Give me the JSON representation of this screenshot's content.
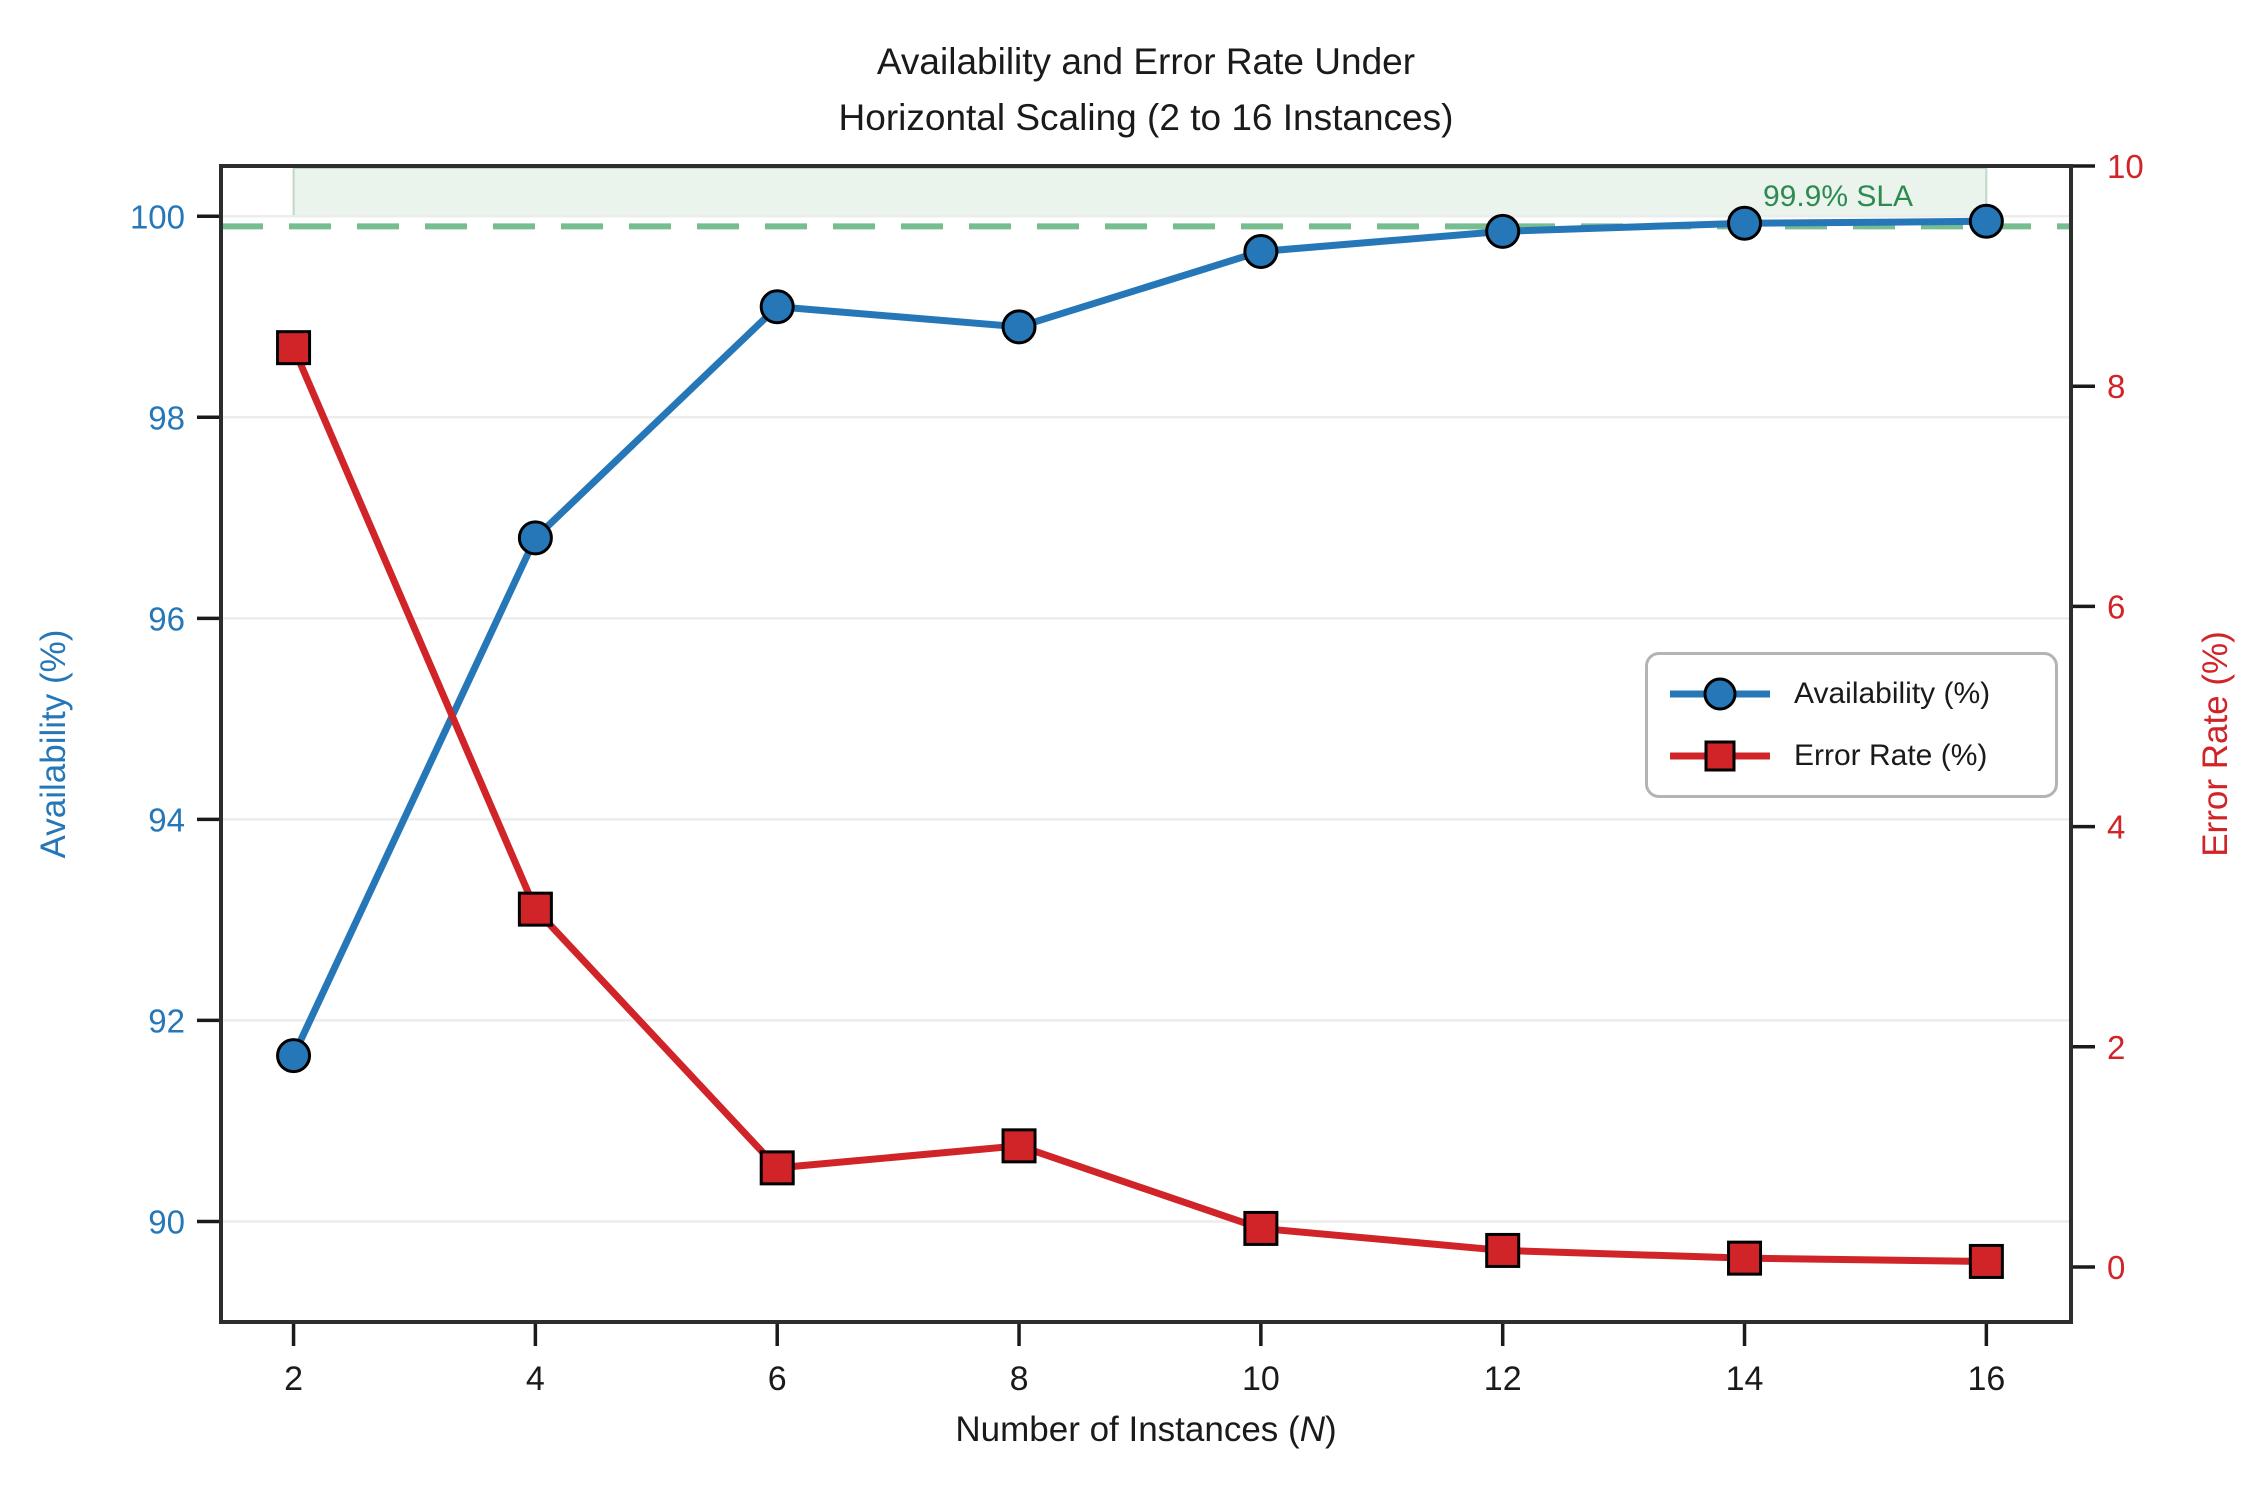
{
  "title": {
    "line1": "Availability and Error Rate Under",
    "line2": "Horizontal Scaling (2 to 16 Instances)"
  },
  "chart_data": {
    "type": "line",
    "x": [
      2,
      4,
      6,
      8,
      10,
      12,
      14,
      16
    ],
    "series": [
      {
        "name": "Availability (%)",
        "axis": "left",
        "marker": "circle",
        "color": "#2677b8",
        "values": [
          91.65,
          96.8,
          99.1,
          98.9,
          99.65,
          99.85,
          99.93,
          99.95
        ]
      },
      {
        "name": "Error Rate (%)",
        "axis": "right",
        "marker": "square",
        "color": "#d02428",
        "values": [
          8.35,
          3.25,
          0.9,
          1.1,
          0.35,
          0.15,
          0.08,
          0.05
        ]
      }
    ],
    "xlabel": {
      "prefix": "Number of Instances (",
      "variable": "N",
      "suffix": ")"
    },
    "ylabel_left": "Availability (%)",
    "ylabel_right": "Error Rate (%)",
    "xlim": [
      1.4,
      16.7
    ],
    "ylim_left": [
      89.0,
      100.5
    ],
    "ylim_right": [
      -0.5,
      10.0
    ],
    "xticks": [
      2,
      4,
      6,
      8,
      10,
      12,
      14,
      16
    ],
    "yticks_left": [
      90,
      92,
      94,
      96,
      98,
      100
    ],
    "yticks_right": [
      0,
      2,
      4,
      6,
      8,
      10
    ],
    "grid": "horizontal-left-ticks",
    "legend_position": "center-right",
    "sla": {
      "value": 99.9,
      "label": "99.9% SLA",
      "line_color": "#76bd90",
      "text_color": "#2e8b50",
      "band": {
        "x_from": 2,
        "x_to": 16,
        "y_from": 100.0,
        "y_to": "plot-top",
        "fill": "#eaf3ec"
      }
    },
    "colors": {
      "availability": "#2677b8",
      "error_rate": "#d02428",
      "grid": "#ececec",
      "spine": "#2d2d2d",
      "tick": "#1a1a1a"
    }
  }
}
